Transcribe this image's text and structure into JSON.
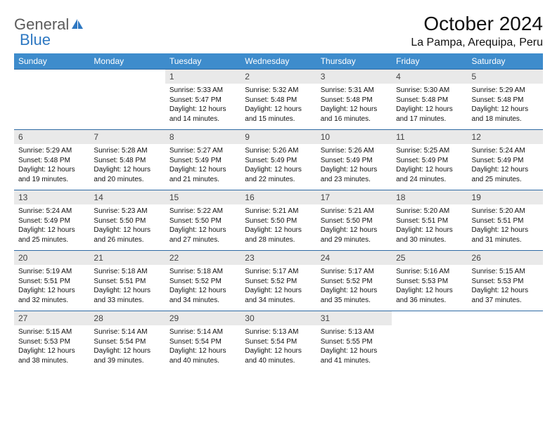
{
  "logo": {
    "text1": "General",
    "text2": "Blue"
  },
  "title": "October 2024",
  "location": "La Pampa, Arequipa, Peru",
  "colors": {
    "header_bg": "#3e8ccc",
    "header_text": "#ffffff",
    "daynum_bg": "#e9e9e9",
    "row_border": "#2e6aa3",
    "logo_gray": "#5b5b5b",
    "logo_blue": "#2e78c2",
    "page_bg": "#ffffff",
    "text": "#111111"
  },
  "fonts": {
    "title_size_pt": 21,
    "location_size_pt": 12,
    "header_size_pt": 9,
    "daynum_size_pt": 9,
    "body_size_pt": 7.5
  },
  "day_headers": [
    "Sunday",
    "Monday",
    "Tuesday",
    "Wednesday",
    "Thursday",
    "Friday",
    "Saturday"
  ],
  "weeks": [
    [
      {
        "empty": true
      },
      {
        "empty": true
      },
      {
        "num": "1",
        "sunrise": "5:33 AM",
        "sunset": "5:47 PM",
        "daylight": "12 hours and 14 minutes."
      },
      {
        "num": "2",
        "sunrise": "5:32 AM",
        "sunset": "5:48 PM",
        "daylight": "12 hours and 15 minutes."
      },
      {
        "num": "3",
        "sunrise": "5:31 AM",
        "sunset": "5:48 PM",
        "daylight": "12 hours and 16 minutes."
      },
      {
        "num": "4",
        "sunrise": "5:30 AM",
        "sunset": "5:48 PM",
        "daylight": "12 hours and 17 minutes."
      },
      {
        "num": "5",
        "sunrise": "5:29 AM",
        "sunset": "5:48 PM",
        "daylight": "12 hours and 18 minutes."
      }
    ],
    [
      {
        "num": "6",
        "sunrise": "5:29 AM",
        "sunset": "5:48 PM",
        "daylight": "12 hours and 19 minutes."
      },
      {
        "num": "7",
        "sunrise": "5:28 AM",
        "sunset": "5:48 PM",
        "daylight": "12 hours and 20 minutes."
      },
      {
        "num": "8",
        "sunrise": "5:27 AM",
        "sunset": "5:49 PM",
        "daylight": "12 hours and 21 minutes."
      },
      {
        "num": "9",
        "sunrise": "5:26 AM",
        "sunset": "5:49 PM",
        "daylight": "12 hours and 22 minutes."
      },
      {
        "num": "10",
        "sunrise": "5:26 AM",
        "sunset": "5:49 PM",
        "daylight": "12 hours and 23 minutes."
      },
      {
        "num": "11",
        "sunrise": "5:25 AM",
        "sunset": "5:49 PM",
        "daylight": "12 hours and 24 minutes."
      },
      {
        "num": "12",
        "sunrise": "5:24 AM",
        "sunset": "5:49 PM",
        "daylight": "12 hours and 25 minutes."
      }
    ],
    [
      {
        "num": "13",
        "sunrise": "5:24 AM",
        "sunset": "5:49 PM",
        "daylight": "12 hours and 25 minutes."
      },
      {
        "num": "14",
        "sunrise": "5:23 AM",
        "sunset": "5:50 PM",
        "daylight": "12 hours and 26 minutes."
      },
      {
        "num": "15",
        "sunrise": "5:22 AM",
        "sunset": "5:50 PM",
        "daylight": "12 hours and 27 minutes."
      },
      {
        "num": "16",
        "sunrise": "5:21 AM",
        "sunset": "5:50 PM",
        "daylight": "12 hours and 28 minutes."
      },
      {
        "num": "17",
        "sunrise": "5:21 AM",
        "sunset": "5:50 PM",
        "daylight": "12 hours and 29 minutes."
      },
      {
        "num": "18",
        "sunrise": "5:20 AM",
        "sunset": "5:51 PM",
        "daylight": "12 hours and 30 minutes."
      },
      {
        "num": "19",
        "sunrise": "5:20 AM",
        "sunset": "5:51 PM",
        "daylight": "12 hours and 31 minutes."
      }
    ],
    [
      {
        "num": "20",
        "sunrise": "5:19 AM",
        "sunset": "5:51 PM",
        "daylight": "12 hours and 32 minutes."
      },
      {
        "num": "21",
        "sunrise": "5:18 AM",
        "sunset": "5:51 PM",
        "daylight": "12 hours and 33 minutes."
      },
      {
        "num": "22",
        "sunrise": "5:18 AM",
        "sunset": "5:52 PM",
        "daylight": "12 hours and 34 minutes."
      },
      {
        "num": "23",
        "sunrise": "5:17 AM",
        "sunset": "5:52 PM",
        "daylight": "12 hours and 34 minutes."
      },
      {
        "num": "24",
        "sunrise": "5:17 AM",
        "sunset": "5:52 PM",
        "daylight": "12 hours and 35 minutes."
      },
      {
        "num": "25",
        "sunrise": "5:16 AM",
        "sunset": "5:53 PM",
        "daylight": "12 hours and 36 minutes."
      },
      {
        "num": "26",
        "sunrise": "5:15 AM",
        "sunset": "5:53 PM",
        "daylight": "12 hours and 37 minutes."
      }
    ],
    [
      {
        "num": "27",
        "sunrise": "5:15 AM",
        "sunset": "5:53 PM",
        "daylight": "12 hours and 38 minutes."
      },
      {
        "num": "28",
        "sunrise": "5:14 AM",
        "sunset": "5:54 PM",
        "daylight": "12 hours and 39 minutes."
      },
      {
        "num": "29",
        "sunrise": "5:14 AM",
        "sunset": "5:54 PM",
        "daylight": "12 hours and 40 minutes."
      },
      {
        "num": "30",
        "sunrise": "5:13 AM",
        "sunset": "5:54 PM",
        "daylight": "12 hours and 40 minutes."
      },
      {
        "num": "31",
        "sunrise": "5:13 AM",
        "sunset": "5:55 PM",
        "daylight": "12 hours and 41 minutes."
      },
      {
        "empty": true
      },
      {
        "empty": true
      }
    ]
  ],
  "labels": {
    "sunrise": "Sunrise:",
    "sunset": "Sunset:",
    "daylight": "Daylight:"
  }
}
